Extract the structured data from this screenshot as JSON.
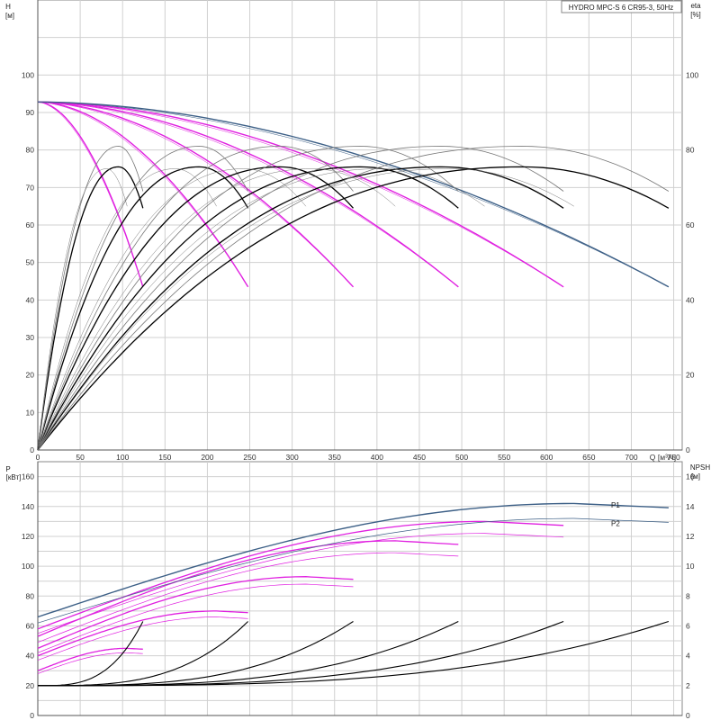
{
  "title_box": "HYDRO MPC-S 6 CR95-3, 50Hz",
  "colors": {
    "head_max": "#3c5f86",
    "head_partial": "#e020e0",
    "efficiency": "#000000",
    "efficiency_alt": "#777777",
    "power_p1": "#3c5f86",
    "power_partial": "#e020e0",
    "npsh": "#000000"
  },
  "chart_data": [
    {
      "type": "line",
      "name": "head-efficiency",
      "y_axis_label": "H",
      "y_axis_unit": "[м]",
      "y2_axis_label": "eta",
      "y2_axis_unit": "[%]",
      "x_axis_label": "Q",
      "x_axis_unit": "[м³/ч]",
      "xlim": [
        0,
        760
      ],
      "ylim": [
        0,
        120
      ],
      "y2lim": [
        0,
        120
      ],
      "x_ticks": [
        0,
        50,
        100,
        150,
        200,
        250,
        300,
        350,
        400,
        450,
        500,
        550,
        600,
        650,
        700,
        750
      ],
      "y_ticks": [
        0,
        10,
        20,
        30,
        40,
        50,
        60,
        70,
        80,
        90,
        100
      ],
      "y2_ticks": [
        0,
        20,
        40,
        60,
        80,
        100
      ],
      "head_curves": [
        {
          "pumps": 1,
          "qmax": 124,
          "h_end": 43.5
        },
        {
          "pumps": 2,
          "qmax": 248,
          "h_end": 43.5
        },
        {
          "pumps": 3,
          "qmax": 372,
          "h_end": 43.5
        },
        {
          "pumps": 4,
          "qmax": 496,
          "h_end": 43.5
        },
        {
          "pumps": 5,
          "qmax": 620,
          "h_end": 43.5
        },
        {
          "pumps": 6,
          "qmax": 744,
          "h_end": 43.5
        }
      ],
      "head_shutoff": 92.8,
      "efficiency_peak_black": 75.5,
      "efficiency_peak_grey": 81,
      "efficiency_end_black": 64.5,
      "efficiency_end_grey": 69
    },
    {
      "type": "line",
      "name": "power-npsh",
      "y_axis_label": "P",
      "y_axis_unit": "[кВт]",
      "y2_axis_label": "NPSH",
      "y2_axis_unit": "[м]",
      "xlim": [
        0,
        760
      ],
      "ylim": [
        0,
        170
      ],
      "y2lim": [
        0,
        17
      ],
      "y_ticks": [
        0,
        20,
        40,
        60,
        80,
        100,
        120,
        140,
        160
      ],
      "y2_ticks": [
        0,
        2,
        4,
        6,
        8,
        10,
        12,
        14,
        16
      ],
      "series_labels": [
        "P1",
        "P2"
      ],
      "power_curves": [
        {
          "pumps": 1,
          "qmax": 124,
          "p1": [
            30,
            45
          ],
          "p2": [
            28,
            42
          ]
        },
        {
          "pumps": 2,
          "qmax": 248,
          "p1": [
            40,
            70
          ],
          "p2": [
            37,
            66
          ]
        },
        {
          "pumps": 3,
          "qmax": 372,
          "p1": [
            45,
            93
          ],
          "p2": [
            42,
            88
          ]
        },
        {
          "pumps": 4,
          "qmax": 496,
          "p1": [
            53,
            117
          ],
          "p2": [
            49,
            109
          ]
        },
        {
          "pumps": 5,
          "qmax": 620,
          "p1": [
            58,
            130
          ],
          "p2": [
            55,
            122
          ]
        },
        {
          "pumps": 6,
          "qmax": 744,
          "p1": [
            66,
            142
          ],
          "p2": [
            62,
            132
          ]
        }
      ],
      "npsh_start": 2.0,
      "npsh_end": 6.3
    }
  ]
}
